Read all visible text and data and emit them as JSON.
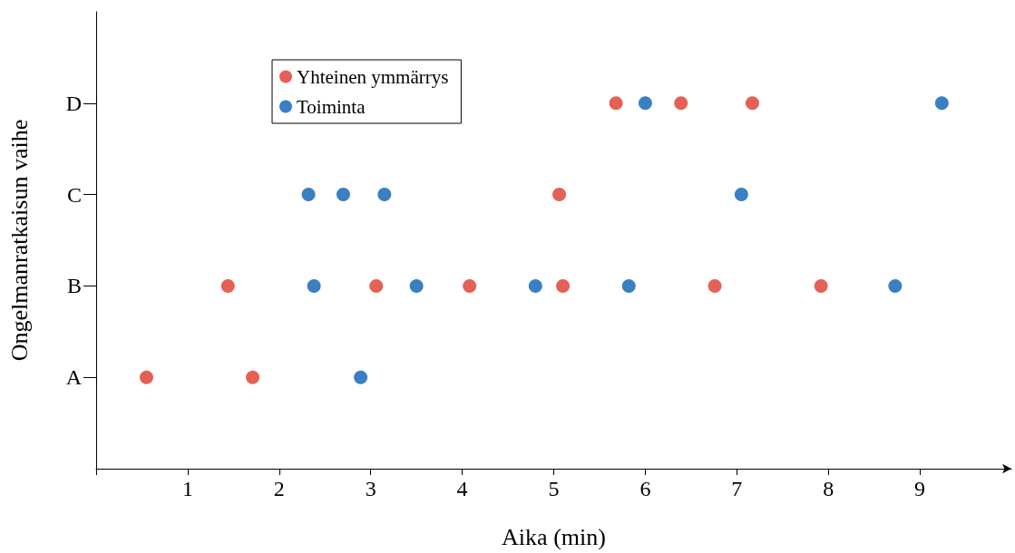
{
  "chart_data": {
    "type": "scatter",
    "orientation": "horizontal",
    "xlabel": "Aika (min)",
    "ylabel": "Ongelmanratkaisun vaihe",
    "xlim": [
      0,
      10
    ],
    "xticks": [
      {
        "value": 0,
        "label": null
      },
      1,
      2,
      3,
      4,
      5,
      6,
      7,
      8,
      9
    ],
    "categories": [
      null,
      "D",
      "C",
      "B",
      "A",
      null
    ],
    "grid": false,
    "legend": "top left",
    "marker": "circle",
    "series": [
      {
        "name": "Yhteinen ymmärrys",
        "color": "#dd3a2a",
        "x": [
          "A",
          "A",
          "B",
          "B",
          "B",
          "B",
          "B",
          "B",
          "C",
          "D",
          "D",
          "D"
        ],
        "values": [
          0.55,
          1.71,
          1.44,
          3.06,
          4.08,
          5.1,
          6.76,
          7.92,
          5.06,
          5.68,
          6.39,
          7.17
        ]
      },
      {
        "name": "Toiminta",
        "color": "#0a5fb4",
        "x": [
          "A",
          "B",
          "B",
          "B",
          "B",
          "B",
          "C",
          "C",
          "C",
          "C",
          "D",
          "D"
        ],
        "values": [
          2.89,
          2.38,
          3.5,
          4.8,
          5.82,
          8.73,
          2.32,
          2.7,
          3.15,
          7.05,
          6.0,
          9.24
        ]
      }
    ]
  }
}
